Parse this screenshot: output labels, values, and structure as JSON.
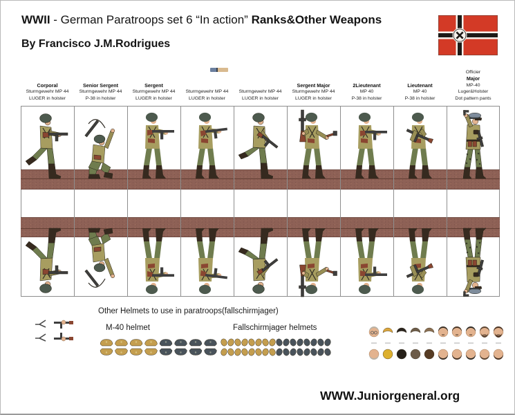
{
  "header": {
    "title_bold1": "WWII",
    "title_mid": " - German  Paratroops set 6 “In action” ",
    "title_bold2": "Ranks&Other Weapons",
    "byline": "By Francisco J.M.Rodrigues"
  },
  "flag": {
    "name": "german-war-flag",
    "red": "#d33a26",
    "black": "#1d1a17",
    "white": "#f5f2ec"
  },
  "columns": [
    {
      "rank": "Corporal",
      "line2": "Sturmgewehr MP 44",
      "line3": "LUGER in holster"
    },
    {
      "rank": "Senior Sergent",
      "line2": "Sturmgewehr MP 44",
      "line3": "P-38 in holster"
    },
    {
      "rank": "Sergent",
      "line2": "Sturmgewehr MP 44",
      "line3": "LUGER in holster"
    },
    {
      "rank": "",
      "line2": "Sturmgewehr MP 44",
      "line3": "LUGER in holster"
    },
    {
      "rank": "",
      "line2": "Sturmgewehr MP 44",
      "line3": "LUGER in holster"
    },
    {
      "rank": "Sergent Major",
      "line2": "Sturmgewehr MP 44",
      "line3": "LUGER in holster"
    },
    {
      "rank": "2Lieutenant",
      "line2": "MP 40",
      "line3": "P-38 in holster"
    },
    {
      "rank": "Lieutenant",
      "line2": "MP 40",
      "line3": "P-38 in holster"
    },
    {
      "pre_rank": "Officier",
      "rank": "Major",
      "line2": "MP-40",
      "line3": "Luger&Holster",
      "line4": "Dot pattern pants"
    }
  ],
  "spare_parts": {
    "heading": "Other Helmets to use in paratroops(fallschirmjager)",
    "m40_label": "M-40 helmet",
    "fj_label": "Fallschirmjager helmets"
  },
  "footer": {
    "site": "WWW.Juniorgeneral.org"
  },
  "colors": {
    "uniform_khaki": "#a79d60",
    "trousers_green": "#6f7c4e",
    "helmet_green": "#4d5a4e",
    "skin": "#e3b38f",
    "base_strip_brown": "#8e6156",
    "helmet_tan": "#c49e4f",
    "helmet_gray": "#49535b",
    "officer_cap_gray": "#7e8c9c",
    "flag_red": "#d33a26"
  }
}
